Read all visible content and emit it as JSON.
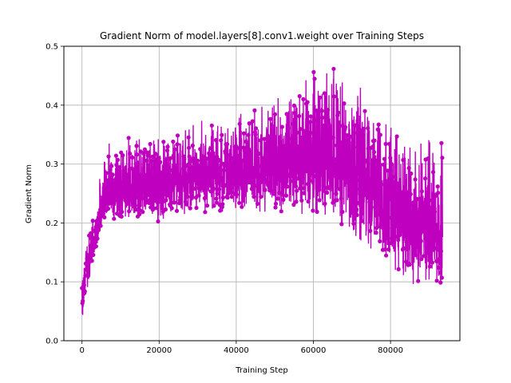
{
  "chart_data": {
    "type": "line",
    "title": "Gradient Norm of model.layers[8].conv1.weight over Training Steps",
    "xlabel": "Training Step",
    "ylabel": "Gradient Norm",
    "xlim": [
      -4700,
      98000
    ],
    "ylim": [
      0,
      0.5
    ],
    "xticks": [
      0,
      20000,
      40000,
      60000,
      80000
    ],
    "xtick_labels": [
      "0",
      "20000",
      "40000",
      "60000",
      "80000"
    ],
    "yticks": [
      0.0,
      0.1,
      0.2,
      0.3,
      0.4,
      0.5
    ],
    "ytick_labels": [
      "0.0",
      "0.1",
      "0.2",
      "0.3",
      "0.4",
      "0.5"
    ],
    "grid": true,
    "marker": "circle",
    "color": "#bf00bf",
    "series": [
      {
        "x": [
          0,
          300,
          600,
          1000,
          1500,
          2000,
          2500,
          3000,
          3500,
          4000,
          4500,
          5000,
          6000,
          7000,
          8000,
          9000,
          10000,
          12000,
          14000,
          16000,
          18000,
          20000,
          22500,
          25000,
          27500,
          30000,
          32500,
          35000,
          37500,
          40000,
          42500,
          45000,
          47500,
          50000,
          52500,
          55000,
          57500,
          60000,
          62000,
          64000,
          66000,
          68000,
          70000,
          72000,
          74000,
          76000,
          78000,
          80000,
          82000,
          84000,
          86000,
          88000,
          90000,
          92000,
          93500
        ],
        "mid": [
          0.04,
          0.07,
          0.09,
          0.11,
          0.12,
          0.135,
          0.15,
          0.165,
          0.18,
          0.195,
          0.21,
          0.22,
          0.235,
          0.245,
          0.25,
          0.255,
          0.255,
          0.258,
          0.26,
          0.262,
          0.264,
          0.266,
          0.268,
          0.27,
          0.272,
          0.274,
          0.276,
          0.278,
          0.28,
          0.283,
          0.286,
          0.29,
          0.294,
          0.298,
          0.302,
          0.306,
          0.308,
          0.31,
          0.31,
          0.308,
          0.305,
          0.3,
          0.295,
          0.285,
          0.275,
          0.26,
          0.245,
          0.23,
          0.215,
          0.205,
          0.195,
          0.19,
          0.185,
          0.182,
          0.18
        ],
        "low": [
          0.02,
          0.04,
          0.06,
          0.08,
          0.09,
          0.1,
          0.12,
          0.14,
          0.15,
          0.16,
          0.175,
          0.19,
          0.2,
          0.205,
          0.205,
          0.205,
          0.2,
          0.2,
          0.2,
          0.2,
          0.2,
          0.2,
          0.2,
          0.2,
          0.205,
          0.205,
          0.205,
          0.21,
          0.21,
          0.21,
          0.21,
          0.215,
          0.215,
          0.215,
          0.215,
          0.21,
          0.21,
          0.2,
          0.2,
          0.195,
          0.19,
          0.185,
          0.17,
          0.16,
          0.15,
          0.13,
          0.12,
          0.11,
          0.1,
          0.095,
          0.09,
          0.085,
          0.08,
          0.08,
          0.08
        ],
        "high": [
          0.15,
          0.13,
          0.14,
          0.15,
          0.17,
          0.18,
          0.2,
          0.22,
          0.24,
          0.26,
          0.28,
          0.3,
          0.31,
          0.32,
          0.32,
          0.32,
          0.33,
          0.33,
          0.335,
          0.34,
          0.34,
          0.345,
          0.345,
          0.35,
          0.35,
          0.355,
          0.36,
          0.365,
          0.37,
          0.38,
          0.39,
          0.395,
          0.4,
          0.41,
          0.415,
          0.42,
          0.43,
          0.44,
          0.445,
          0.45,
          0.445,
          0.44,
          0.43,
          0.42,
          0.41,
          0.4,
          0.38,
          0.37,
          0.36,
          0.35,
          0.34,
          0.33,
          0.33,
          0.32,
          0.32
        ]
      }
    ]
  }
}
